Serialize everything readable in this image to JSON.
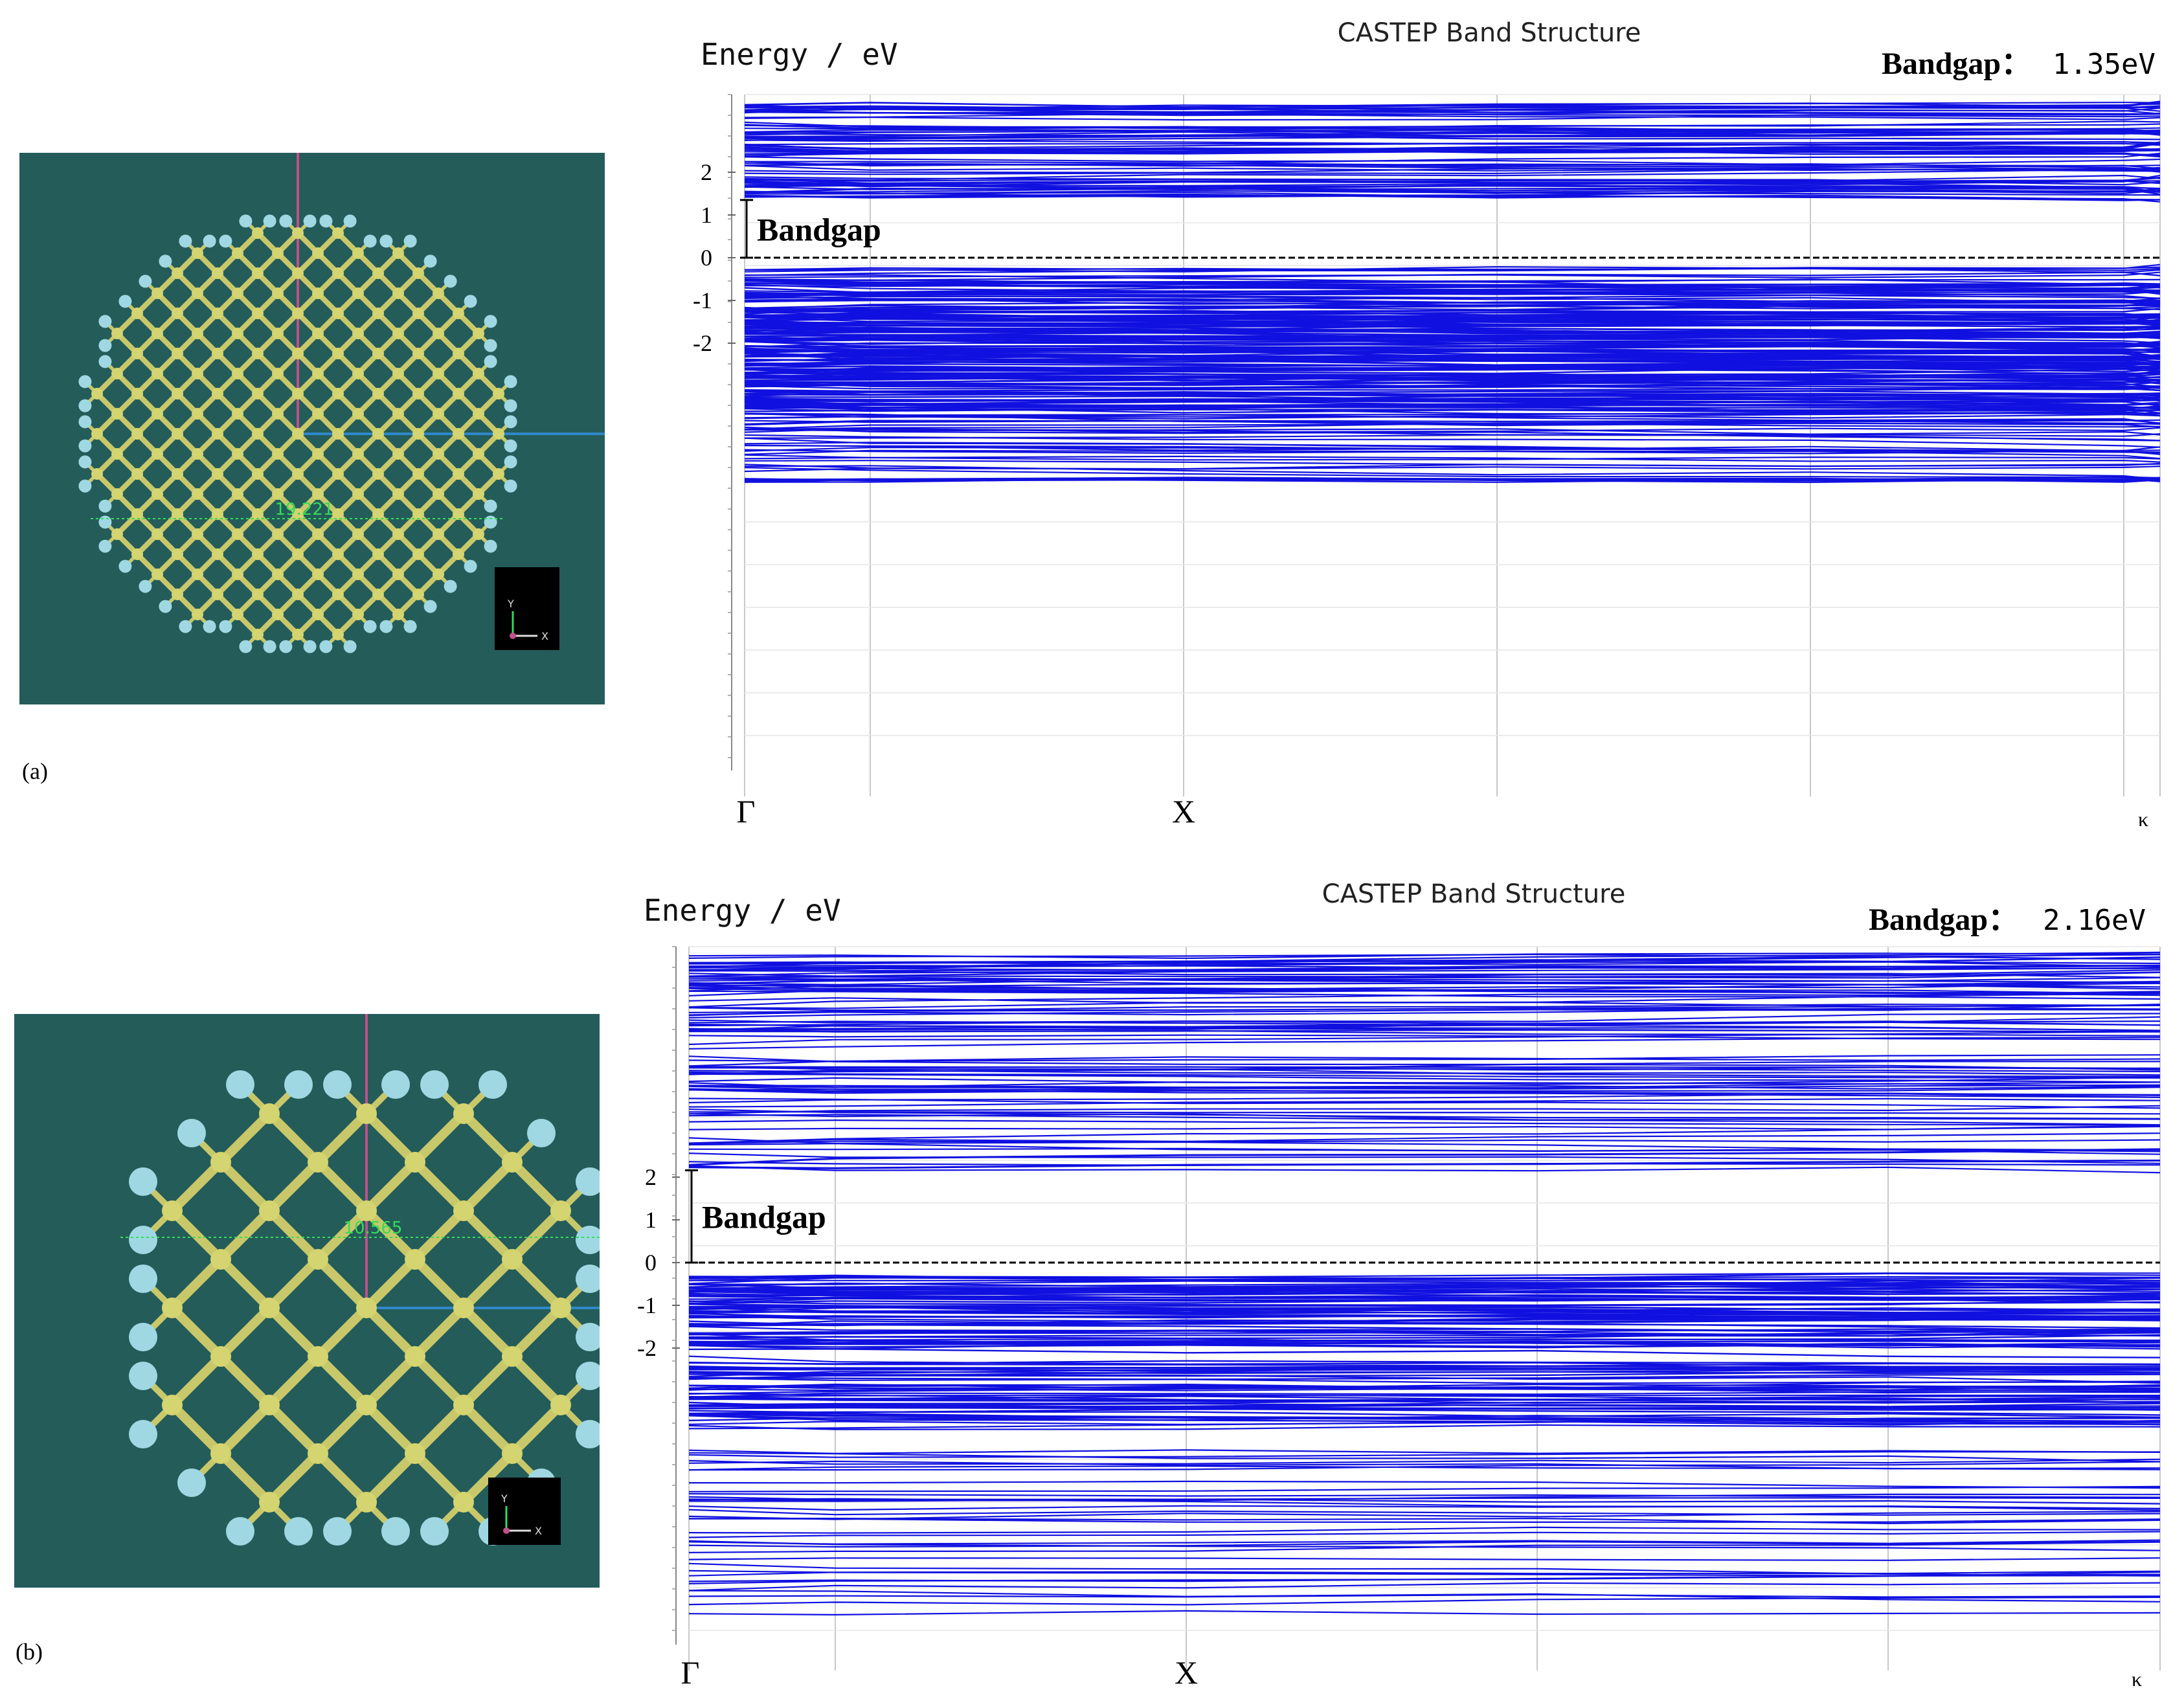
{
  "panels": [
    {
      "caption": "(a)",
      "measurement": "19.221",
      "mini_axes": {
        "y": "Y",
        "x": "X"
      },
      "chart_title": "CASTEP Band Structure",
      "ylabel": "Energy / eV",
      "bandgap_label": "Bandgap：",
      "bandgap_value": "1.35eV",
      "gap_annotation": "Bandgap",
      "yticks": [
        "2",
        "1",
        "0",
        "-1",
        "-2"
      ],
      "kpoints": [
        "Γ",
        "X",
        "κ"
      ]
    },
    {
      "caption": "(b)",
      "measurement": "10.565",
      "mini_axes": {
        "y": "Y",
        "x": "X"
      },
      "chart_title": "CASTEP Band Structure",
      "ylabel": "Energy / eV",
      "bandgap_label": "Bandgap：",
      "bandgap_value": "2.16eV",
      "gap_annotation": "Bandgap",
      "yticks": [
        "2",
        "1",
        "0",
        "-1",
        "-2"
      ],
      "kpoints": [
        "Γ",
        "X",
        "κ"
      ]
    }
  ],
  "chart_data": [
    {
      "type": "line",
      "title": "CASTEP Band Structure",
      "ylabel": "Energy / eV",
      "x": [
        "Γ",
        "X",
        "κ"
      ],
      "yticks": [
        2,
        1,
        0,
        -1,
        -2
      ],
      "fermi_level": 0,
      "conduction_band_min": 1.35,
      "valence_band_max": 0,
      "bandgap_eV": 1.35,
      "colors": {
        "bands": "#1010e0",
        "fermi": "#000000"
      }
    },
    {
      "type": "line",
      "title": "CASTEP Band Structure",
      "ylabel": "Energy / eV",
      "x": [
        "Γ",
        "X",
        "κ"
      ],
      "yticks": [
        2,
        1,
        0,
        -1,
        -2
      ],
      "fermi_level": 0,
      "conduction_band_min": 2.16,
      "valence_band_max": 0,
      "bandgap_eV": 2.16,
      "colors": {
        "bands": "#1010e0",
        "fermi": "#000000"
      }
    }
  ],
  "colors": {
    "panel_bg": "#245c5a",
    "bond": "#c8c86a",
    "atom_si": "#d4d470",
    "atom_h": "#9fd8e2",
    "axis_z": "#c0508a",
    "axis_x": "#2f88c8"
  }
}
